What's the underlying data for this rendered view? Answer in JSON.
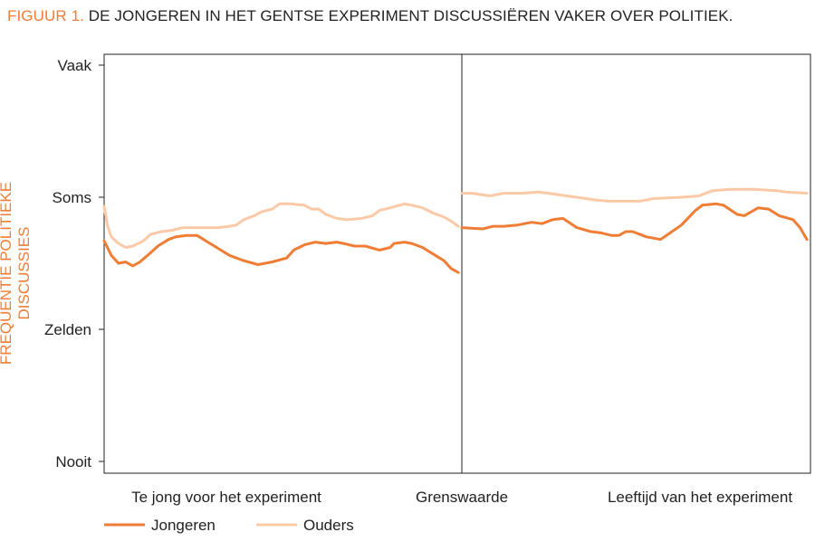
{
  "title": {
    "prefix": "FIGUUR 1.",
    "text": "DE JONGEREN IN HET GENTSE EXPERIMENT DISCUSSIËREN VAKER OVER POLITIEK."
  },
  "chart_data": {
    "type": "line",
    "ylabel": "FREQUENTIE POLITIEKE DISCUSSIES",
    "xlabel": "",
    "ylim": [
      1,
      4
    ],
    "yticks": [
      {
        "value": 4,
        "label": "Vaak"
      },
      {
        "value": 3,
        "label": "Soms"
      },
      {
        "value": 2,
        "label": "Zelden"
      },
      {
        "value": 1,
        "label": "Nooit"
      }
    ],
    "xlim": [
      -1,
      1
    ],
    "cutoff": 0,
    "x_category_labels": {
      "left": "Te jong voor het experiment",
      "cutoff": "Grenswaarde",
      "right": "Leeftijd van het experiment"
    },
    "grid": false,
    "legend": "bottom-left",
    "series": [
      {
        "name": "Jongeren",
        "color": "#ef7d35",
        "segments": [
          [
            [
              -1.0,
              2.67
            ],
            [
              -0.98,
              2.56
            ],
            [
              -0.96,
              2.5
            ],
            [
              -0.94,
              2.51
            ],
            [
              -0.92,
              2.48
            ],
            [
              -0.9,
              2.51
            ],
            [
              -0.87,
              2.58
            ],
            [
              -0.85,
              2.63
            ],
            [
              -0.82,
              2.68
            ],
            [
              -0.8,
              2.7
            ],
            [
              -0.77,
              2.71
            ],
            [
              -0.76,
              2.71
            ],
            [
              -0.74,
              2.71
            ],
            [
              -0.71,
              2.66
            ],
            [
              -0.68,
              2.61
            ],
            [
              -0.65,
              2.56
            ],
            [
              -0.61,
              2.52
            ],
            [
              -0.57,
              2.49
            ],
            [
              -0.53,
              2.51
            ],
            [
              -0.49,
              2.54
            ],
            [
              -0.47,
              2.6
            ],
            [
              -0.44,
              2.64
            ],
            [
              -0.41,
              2.66
            ],
            [
              -0.38,
              2.65
            ],
            [
              -0.35,
              2.66
            ],
            [
              -0.33,
              2.65
            ],
            [
              -0.3,
              2.63
            ],
            [
              -0.27,
              2.63
            ],
            [
              -0.23,
              2.6
            ],
            [
              -0.2,
              2.62
            ],
            [
              -0.19,
              2.65
            ],
            [
              -0.16,
              2.66
            ],
            [
              -0.14,
              2.65
            ],
            [
              -0.11,
              2.62
            ],
            [
              -0.08,
              2.57
            ],
            [
              -0.05,
              2.52
            ],
            [
              -0.03,
              2.46
            ],
            [
              -0.01,
              2.43
            ]
          ],
          [
            [
              0.0,
              2.77
            ],
            [
              0.06,
              2.76
            ],
            [
              0.09,
              2.78
            ],
            [
              0.12,
              2.78
            ],
            [
              0.16,
              2.79
            ],
            [
              0.2,
              2.81
            ],
            [
              0.23,
              2.8
            ],
            [
              0.26,
              2.83
            ],
            [
              0.29,
              2.84
            ],
            [
              0.33,
              2.77
            ],
            [
              0.37,
              2.74
            ],
            [
              0.4,
              2.73
            ],
            [
              0.43,
              2.71
            ],
            [
              0.45,
              2.71
            ],
            [
              0.47,
              2.74
            ],
            [
              0.49,
              2.74
            ],
            [
              0.53,
              2.7
            ],
            [
              0.57,
              2.68
            ],
            [
              0.63,
              2.79
            ],
            [
              0.67,
              2.9
            ],
            [
              0.69,
              2.94
            ],
            [
              0.73,
              2.95
            ],
            [
              0.75,
              2.94
            ],
            [
              0.79,
              2.87
            ],
            [
              0.81,
              2.86
            ],
            [
              0.85,
              2.92
            ],
            [
              0.88,
              2.91
            ],
            [
              0.91,
              2.86
            ],
            [
              0.95,
              2.83
            ],
            [
              0.97,
              2.77
            ],
            [
              0.99,
              2.68
            ]
          ]
        ]
      },
      {
        "name": "Ouders",
        "color": "#fcc9a6",
        "segments": [
          [
            [
              -1.0,
              2.93
            ],
            [
              -0.99,
              2.78
            ],
            [
              -0.98,
              2.7
            ],
            [
              -0.96,
              2.65
            ],
            [
              -0.94,
              2.62
            ],
            [
              -0.92,
              2.63
            ],
            [
              -0.89,
              2.67
            ],
            [
              -0.87,
              2.72
            ],
            [
              -0.84,
              2.74
            ],
            [
              -0.81,
              2.75
            ],
            [
              -0.78,
              2.77
            ],
            [
              -0.75,
              2.77
            ],
            [
              -0.72,
              2.77
            ],
            [
              -0.68,
              2.77
            ],
            [
              -0.65,
              2.78
            ],
            [
              -0.63,
              2.79
            ],
            [
              -0.61,
              2.83
            ],
            [
              -0.58,
              2.86
            ],
            [
              -0.56,
              2.89
            ],
            [
              -0.53,
              2.91
            ],
            [
              -0.51,
              2.95
            ],
            [
              -0.48,
              2.95
            ],
            [
              -0.44,
              2.94
            ],
            [
              -0.42,
              2.91
            ],
            [
              -0.4,
              2.91
            ],
            [
              -0.38,
              2.87
            ],
            [
              -0.35,
              2.84
            ],
            [
              -0.32,
              2.83
            ],
            [
              -0.28,
              2.84
            ],
            [
              -0.25,
              2.86
            ],
            [
              -0.23,
              2.9
            ],
            [
              -0.2,
              2.92
            ],
            [
              -0.16,
              2.95
            ],
            [
              -0.14,
              2.94
            ],
            [
              -0.11,
              2.92
            ],
            [
              -0.08,
              2.88
            ],
            [
              -0.05,
              2.85
            ],
            [
              -0.03,
              2.82
            ],
            [
              -0.01,
              2.78
            ]
          ],
          [
            [
              0.0,
              3.03
            ],
            [
              0.03,
              3.03
            ],
            [
              0.08,
              3.01
            ],
            [
              0.12,
              3.03
            ],
            [
              0.17,
              3.03
            ],
            [
              0.22,
              3.04
            ],
            [
              0.25,
              3.03
            ],
            [
              0.3,
              3.01
            ],
            [
              0.33,
              3.0
            ],
            [
              0.38,
              2.98
            ],
            [
              0.42,
              2.97
            ],
            [
              0.48,
              2.97
            ],
            [
              0.51,
              2.97
            ],
            [
              0.55,
              2.99
            ],
            [
              0.63,
              3.0
            ],
            [
              0.68,
              3.01
            ],
            [
              0.72,
              3.05
            ],
            [
              0.77,
              3.06
            ],
            [
              0.84,
              3.06
            ],
            [
              0.9,
              3.05
            ],
            [
              0.93,
              3.04
            ],
            [
              0.99,
              3.03
            ]
          ]
        ]
      }
    ]
  }
}
